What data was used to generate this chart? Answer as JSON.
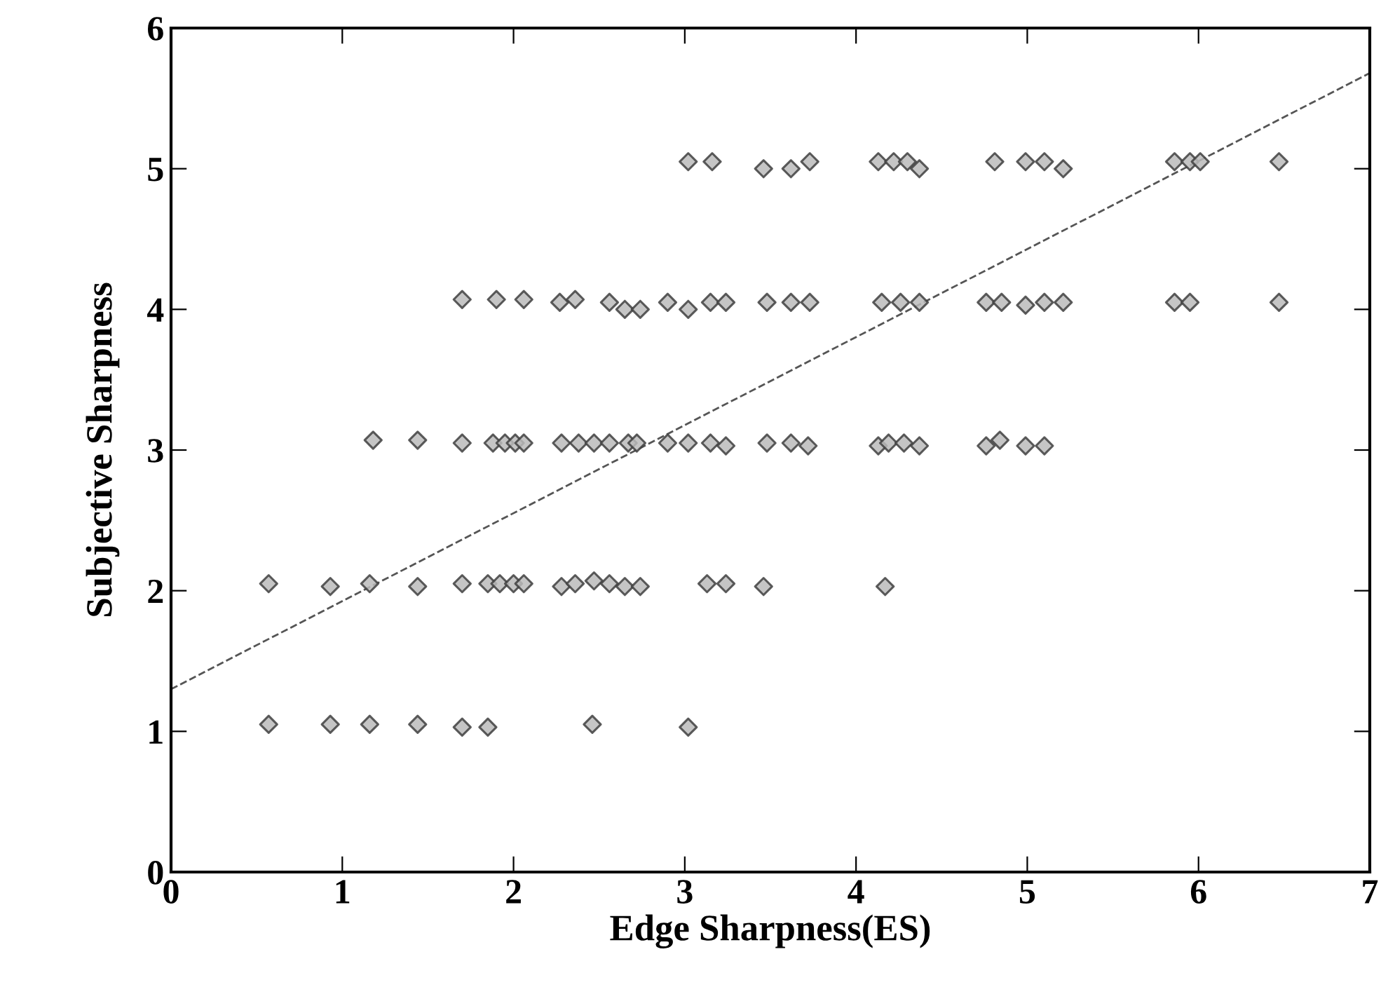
{
  "chart_data": {
    "type": "scatter",
    "xlabel": "Edge Sharpness(ES)",
    "ylabel": "Subjective Sharpness",
    "xlim": [
      0,
      7
    ],
    "ylim": [
      0,
      6
    ],
    "xticks": [
      0,
      1,
      2,
      3,
      4,
      5,
      6,
      7
    ],
    "yticks": [
      0,
      1,
      2,
      3,
      4,
      5,
      6
    ],
    "grid": false,
    "legend": false,
    "series": [
      {
        "type": "scatter",
        "marker": "diamond",
        "color": "#404040",
        "x": [
          3.02,
          3.16,
          3.46,
          3.62,
          3.73,
          4.13,
          4.22,
          4.3,
          4.37,
          4.81,
          4.99,
          5.1,
          5.21,
          5.86,
          5.95,
          6.01,
          6.47,
          1.7,
          1.9,
          2.06,
          2.27,
          2.36,
          2.56,
          2.65,
          2.74,
          2.9,
          3.02,
          3.15,
          3.24,
          3.48,
          3.62,
          3.73,
          4.15,
          4.26,
          4.37,
          4.76,
          4.85,
          4.99,
          5.1,
          5.21,
          5.86,
          5.95,
          6.47,
          1.18,
          1.44,
          1.7,
          1.88,
          1.95,
          2.01,
          2.06,
          2.28,
          2.38,
          2.47,
          2.56,
          2.67,
          2.72,
          2.9,
          3.02,
          3.15,
          3.24,
          3.48,
          3.62,
          3.72,
          4.13,
          4.19,
          4.28,
          4.37,
          4.76,
          4.84,
          4.99,
          5.1,
          0.57,
          0.93,
          1.16,
          1.44,
          1.7,
          1.85,
          1.92,
          2.0,
          2.06,
          2.28,
          2.36,
          2.47,
          2.56,
          2.65,
          2.74,
          3.13,
          3.24,
          3.46,
          4.17,
          0.57,
          0.93,
          1.16,
          1.44,
          1.7,
          1.85,
          2.46,
          3.02
        ],
        "values": [
          5.05,
          5.05,
          5.0,
          5.0,
          5.05,
          5.05,
          5.05,
          5.05,
          5.0,
          5.05,
          5.05,
          5.05,
          5.0,
          5.05,
          5.05,
          5.05,
          5.05,
          4.07,
          4.07,
          4.07,
          4.05,
          4.07,
          4.05,
          4.0,
          4.0,
          4.05,
          4.0,
          4.05,
          4.05,
          4.05,
          4.05,
          4.05,
          4.05,
          4.05,
          4.05,
          4.05,
          4.05,
          4.03,
          4.05,
          4.05,
          4.05,
          4.05,
          4.05,
          3.07,
          3.07,
          3.05,
          3.05,
          3.05,
          3.05,
          3.05,
          3.05,
          3.05,
          3.05,
          3.05,
          3.05,
          3.05,
          3.05,
          3.05,
          3.05,
          3.03,
          3.05,
          3.05,
          3.03,
          3.03,
          3.05,
          3.05,
          3.03,
          3.03,
          3.07,
          3.03,
          3.03,
          2.05,
          2.03,
          2.05,
          2.03,
          2.05,
          2.05,
          2.05,
          2.05,
          2.05,
          2.03,
          2.05,
          2.07,
          2.05,
          2.03,
          2.03,
          2.05,
          2.05,
          2.03,
          2.03,
          1.05,
          1.05,
          1.05,
          1.05,
          1.03,
          1.03,
          1.05,
          1.03
        ]
      },
      {
        "type": "line",
        "marker": "none",
        "line_style": "dashed",
        "color": "#555555",
        "x": [
          0,
          7
        ],
        "values": [
          1.3,
          5.68
        ]
      }
    ]
  }
}
